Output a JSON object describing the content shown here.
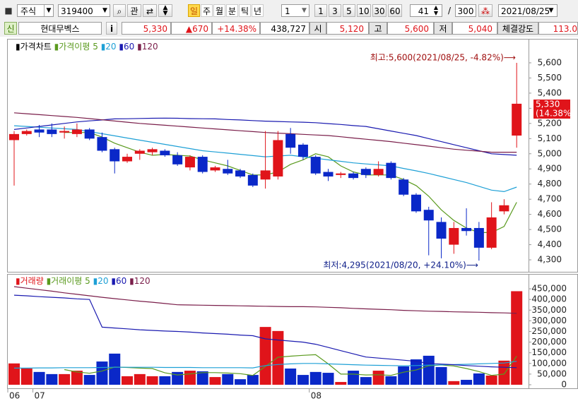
{
  "toolbar": {
    "market": "주식",
    "code": "319400",
    "fav": "관",
    "periods": [
      "일",
      "주",
      "월",
      "분",
      "틱",
      "년"
    ],
    "unit": "1",
    "intervals": [
      "1",
      "3",
      "5",
      "10",
      "30",
      "60"
    ],
    "count": "41",
    "slash": "/",
    "total": "300",
    "date": "2021/08/25"
  },
  "info": {
    "badge": "신",
    "name": "현대무벡스",
    "info_btn": "i",
    "price": "5,330",
    "change": "▲670",
    "rate": "+14.38%",
    "volume": "438,727",
    "open_label": "시",
    "open": "5,120",
    "high_label": "고",
    "high": "5,600",
    "low_label": "저",
    "low": "5,040",
    "strength_label": "체결강도",
    "strength": "113.0"
  },
  "chart_data": [
    {
      "type": "candlestick",
      "name": "가격차트",
      "ma_title": "가격이평",
      "up_color": "#e0141a",
      "down_color": "#0a28c8",
      "open": [
        5090,
        5130,
        5160,
        5160,
        5140,
        5130,
        5160,
        5110,
        5030,
        4950,
        5000,
        5010,
        5020,
        4990,
        4910,
        4980,
        4890,
        4900,
        4890,
        4860,
        4830,
        4850,
        5130,
        5060,
        4980,
        4880,
        4860,
        4870,
        4900,
        4860,
        4940,
        4830,
        4730,
        4630,
        4550,
        4400,
        4510,
        4510,
        4380,
        4620,
        5120
      ],
      "high": [
        5150,
        5160,
        5190,
        5200,
        5180,
        5200,
        5170,
        5140,
        5040,
        5000,
        5030,
        5040,
        5030,
        5010,
        4990,
        4990,
        4920,
        4960,
        4900,
        4870,
        5150,
        5150,
        5170,
        5070,
        4990,
        4900,
        4880,
        4880,
        4910,
        4950,
        4950,
        4840,
        4740,
        4650,
        4580,
        4550,
        4640,
        4550,
        4680,
        4700,
        5600
      ],
      "low": [
        4790,
        5120,
        5110,
        5110,
        5100,
        5110,
        5090,
        5010,
        4870,
        4940,
        4960,
        4990,
        4980,
        4920,
        4890,
        4870,
        4880,
        4860,
        4840,
        4780,
        4770,
        4830,
        5000,
        4960,
        4860,
        4820,
        4840,
        4830,
        4840,
        4850,
        4830,
        4720,
        4610,
        4330,
        4310,
        4340,
        4460,
        4295,
        4370,
        4600,
        5040
      ],
      "close": [
        5130,
        5150,
        5140,
        5130,
        5150,
        5160,
        5100,
        5020,
        4950,
        4980,
        5020,
        5030,
        4990,
        4930,
        4980,
        4880,
        4910,
        4870,
        4850,
        4790,
        4890,
        5090,
        5040,
        4980,
        4870,
        4850,
        4870,
        4840,
        4860,
        4900,
        4840,
        4730,
        4620,
        4560,
        4440,
        4510,
        4490,
        4380,
        4580,
        4660,
        5330
      ],
      "series": [
        {
          "name": "5",
          "color": "#5a9a1e",
          "values": [
            null,
            null,
            null,
            null,
            5140,
            5140,
            5140,
            5110,
            5070,
            5040,
            5010,
            4990,
            4995,
            4990,
            4985,
            4960,
            4940,
            4920,
            4890,
            4860,
            4860,
            4880,
            4930,
            4960,
            5000,
            4980,
            4920,
            4880,
            4860,
            4860,
            4860,
            4830,
            4790,
            4720,
            4630,
            4560,
            4510,
            4480,
            4480,
            4520,
            4680
          ]
        },
        {
          "name": "20",
          "color": "#1ea0d6",
          "values": [
            5185,
            5180,
            5175,
            5170,
            5165,
            5160,
            5146,
            5132,
            5118,
            5104,
            5090,
            5076,
            5062,
            5048,
            5034,
            5020,
            5012,
            5004,
            4996,
            4988,
            4980,
            4985,
            4990,
            4980,
            4970,
            4960,
            4950,
            4940,
            4933,
            4927,
            4920,
            4903,
            4887,
            4870,
            4850,
            4830,
            4810,
            4785,
            4760,
            4750,
            4780
          ]
        },
        {
          "name": "60",
          "color": "#1a1ab0",
          "values": [
            5160,
            5170,
            5180,
            5190,
            5200,
            5210,
            5217,
            5223,
            5230,
            5231,
            5233,
            5234,
            5235,
            5234,
            5232,
            5231,
            5230,
            5226,
            5223,
            5219,
            5215,
            5213,
            5210,
            5208,
            5205,
            5199,
            5193,
            5186,
            5180,
            5165,
            5150,
            5135,
            5120,
            5100,
            5080,
            5060,
            5040,
            5020,
            5000,
            4995,
            4990
          ]
        },
        {
          "name": "120",
          "color": "#7a1e4a",
          "values": [
            5270,
            5264,
            5258,
            5252,
            5246,
            5240,
            5232,
            5224,
            5216,
            5208,
            5200,
            5194,
            5188,
            5182,
            5176,
            5170,
            5164,
            5158,
            5152,
            5146,
            5140,
            5136,
            5132,
            5128,
            5124,
            5120,
            5112,
            5104,
            5096,
            5088,
            5080,
            5070,
            5060,
            5050,
            5040,
            5030,
            5023,
            5017,
            5010,
            5010,
            5010
          ]
        }
      ],
      "ylim": [
        4235,
        5735
      ],
      "yticks": [
        {
          "value": 4300,
          "label": "4,300"
        },
        {
          "value": 4400,
          "label": "4,400"
        },
        {
          "value": 4500,
          "label": "4,500"
        },
        {
          "value": 4600,
          "label": "4,600"
        },
        {
          "value": 4700,
          "label": "4,700"
        },
        {
          "value": 4800,
          "label": "4,800"
        },
        {
          "value": 4900,
          "label": "4,900"
        },
        {
          "value": 5000,
          "label": "5,000"
        },
        {
          "value": 5100,
          "label": "5,100"
        },
        {
          "value": 5200,
          "label": "5,200"
        },
        {
          "value": 5300,
          "label": "5,300"
        },
        {
          "value": 5400,
          "label": "5,400"
        },
        {
          "value": 5500,
          "label": "5,500"
        },
        {
          "value": 5600,
          "label": "5,600"
        }
      ],
      "max_annotation": "최고:5,600(2021/08/25, -4.82%)⟶",
      "min_annotation": "최저:4,295(2021/08/20, +24.10%)⟶",
      "last_label": "5,330",
      "last_change": "(14.38%)"
    },
    {
      "type": "bar",
      "name": "거래량",
      "ma_title": "거래이평",
      "up_color": "#e0141a",
      "down_color": "#0a28c8",
      "categories": [
        "06",
        null,
        "07",
        null,
        null,
        null,
        null,
        null,
        null,
        null,
        null,
        null,
        null,
        null,
        null,
        null,
        null,
        null,
        null,
        null,
        null,
        null,
        null,
        null,
        "08",
        null,
        null,
        null,
        null,
        null,
        null,
        null,
        null,
        null,
        null,
        null,
        null,
        null,
        null,
        null,
        null
      ],
      "values": [
        100000,
        76000,
        60000,
        50000,
        50000,
        66000,
        46000,
        109000,
        146000,
        40000,
        50000,
        40000,
        40000,
        60000,
        66000,
        63000,
        36000,
        50000,
        26000,
        46000,
        271000,
        252000,
        76000,
        46000,
        60000,
        56000,
        13000,
        66000,
        36000,
        66000,
        40000,
        86000,
        119000,
        136000,
        83000,
        17000,
        23000,
        53000,
        43000,
        113000,
        438727
      ],
      "series": [
        {
          "name": "5",
          "color": "#5a9a1e",
          "values": [
            null,
            null,
            null,
            null,
            71000,
            60000,
            54000,
            64000,
            83000,
            81000,
            78000,
            76000,
            56000,
            46000,
            51000,
            57000,
            57000,
            55000,
            52000,
            44000,
            86000,
            129000,
            134000,
            138000,
            141000,
            98000,
            50000,
            50000,
            46000,
            47000,
            44000,
            59000,
            69000,
            89000,
            93000,
            88000,
            76000,
            62000,
            44000,
            50000,
            134000
          ]
        },
        {
          "name": "20",
          "color": "#1ea0d6",
          "values": [
            78000,
            78000,
            79000,
            79000,
            80000,
            80000,
            80000,
            81000,
            82000,
            82000,
            82000,
            82000,
            81000,
            81000,
            81000,
            80000,
            80000,
            80000,
            80000,
            79000,
            90000,
            95000,
            98000,
            100000,
            100000,
            98000,
            96000,
            94000,
            92000,
            91000,
            90000,
            89000,
            90000,
            92000,
            93000,
            95000,
            96000,
            98000,
            100000,
            102000,
            110000
          ]
        },
        {
          "name": "60",
          "color": "#1a1ab0",
          "values": [
            420000,
            417000,
            413000,
            410000,
            407000,
            403000,
            400000,
            270000,
            266000,
            262000,
            258000,
            255000,
            252000,
            250000,
            247000,
            243000,
            240000,
            237000,
            233000,
            230000,
            215000,
            210000,
            205000,
            200000,
            190000,
            175000,
            160000,
            145000,
            130000,
            125000,
            120000,
            115000,
            110000,
            100000,
            97000,
            94000,
            90000,
            87000,
            84000,
            82000,
            80000
          ]
        },
        {
          "name": "120",
          "color": "#7a1e4a",
          "values": [
            460000,
            453000,
            446000,
            439000,
            431000,
            424000,
            417000,
            410000,
            404000,
            398000,
            392000,
            387000,
            381000,
            375000,
            374000,
            373000,
            372000,
            371000,
            370000,
            369000,
            368000,
            367000,
            366000,
            366000,
            365000,
            363000,
            361000,
            358000,
            356000,
            354000,
            352000,
            349000,
            347000,
            345000,
            344000,
            342000,
            341000,
            340000,
            338000,
            337000,
            335000
          ]
        }
      ],
      "ylim": [
        -10000,
        480000
      ],
      "yticks": [
        0,
        {
          "value": 50000,
          "label": "50,000"
        },
        {
          "value": 100000,
          "label": "100,000"
        },
        {
          "value": 150000,
          "label": "150,000"
        },
        {
          "value": 200000,
          "label": "200,000"
        },
        {
          "value": 250000,
          "label": "250,000"
        },
        {
          "value": 300000,
          "label": "300,000"
        },
        {
          "value": 350000,
          "label": "350,000"
        },
        {
          "value": 400000,
          "label": "400,000"
        },
        {
          "value": 450000,
          "label": "450,000"
        }
      ]
    }
  ]
}
